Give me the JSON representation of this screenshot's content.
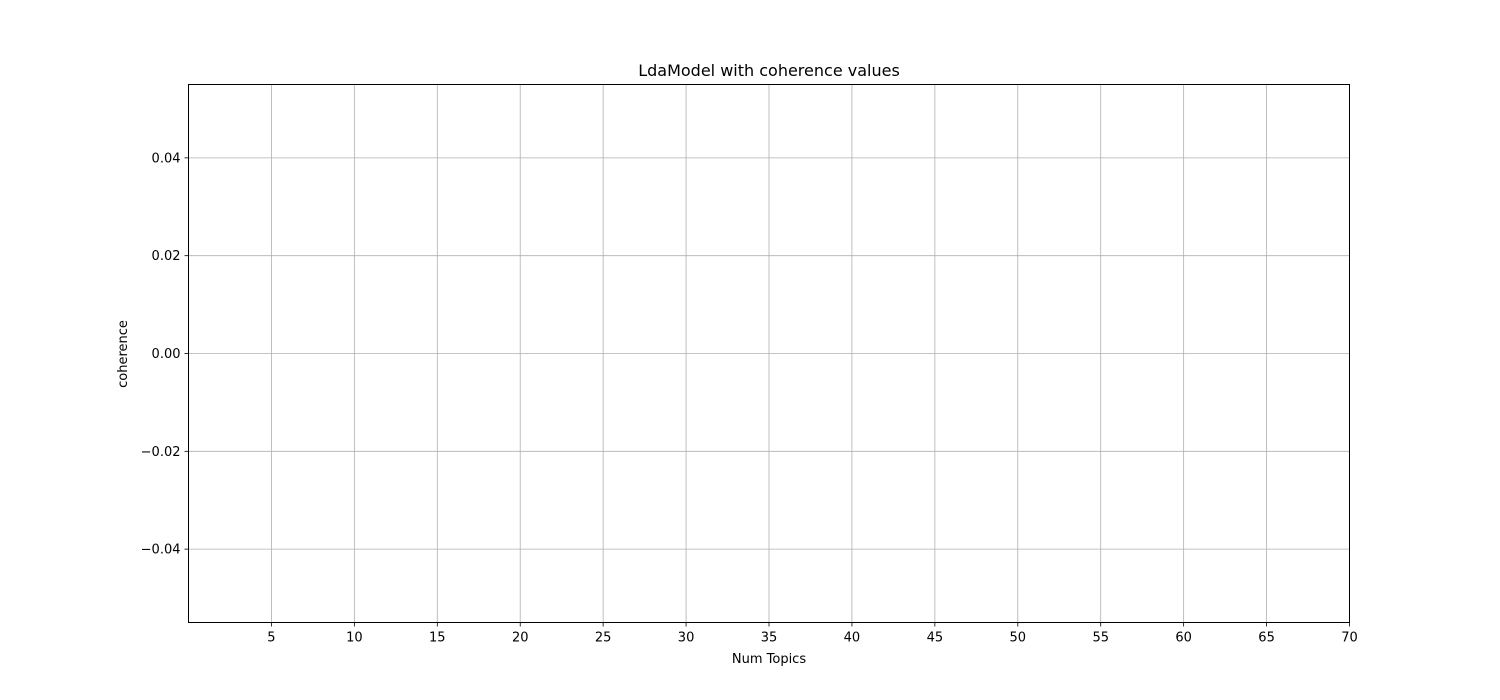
{
  "chart_data": {
    "type": "line",
    "title": "LdaModel with coherence values",
    "xlabel": "Num Topics",
    "ylabel": "coherence",
    "x": [],
    "series": [
      {
        "values": []
      }
    ],
    "xlim": [
      0,
      70
    ],
    "ylim": [
      -0.055,
      0.055
    ],
    "xticks": [
      5,
      10,
      15,
      20,
      25,
      30,
      35,
      40,
      45,
      50,
      55,
      60,
      65,
      70
    ],
    "xtick_labels": [
      "5",
      "10",
      "15",
      "20",
      "25",
      "30",
      "35",
      "40",
      "45",
      "50",
      "55",
      "60",
      "65",
      "70"
    ],
    "yticks": [
      -0.04,
      -0.02,
      0.0,
      0.02,
      0.04
    ],
    "ytick_labels": [
      "−0.04",
      "−0.02",
      "0.00",
      "0.02",
      "0.04"
    ],
    "grid": true,
    "colors": {
      "grid": "#b0b0b0",
      "axes": "#000000",
      "background": "#ffffff"
    }
  }
}
